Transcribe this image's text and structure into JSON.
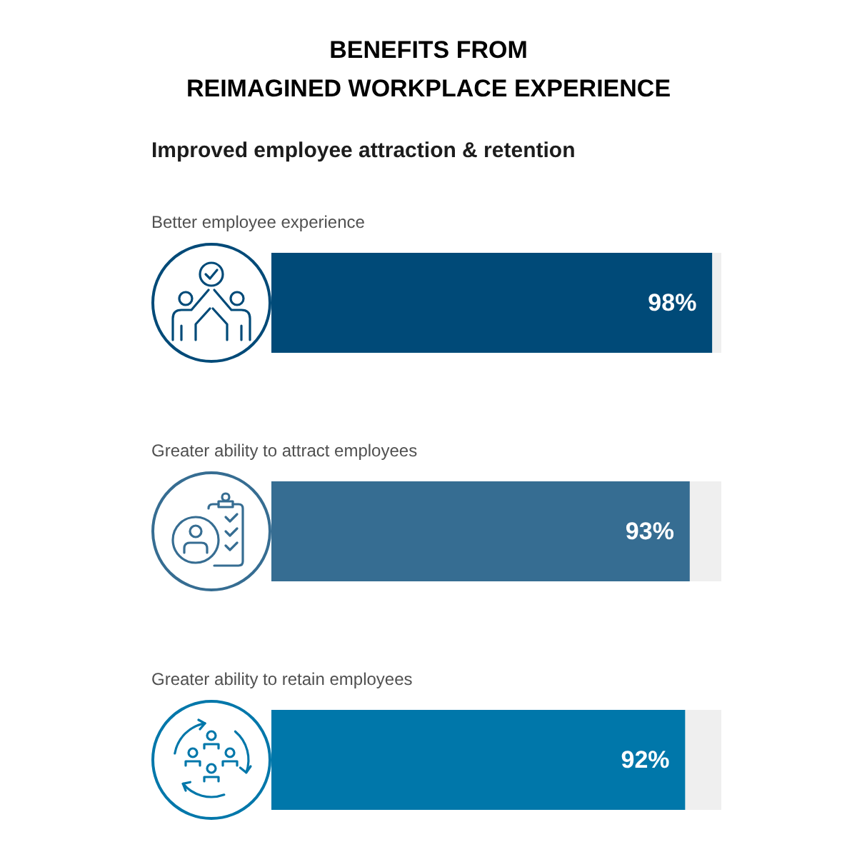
{
  "chart_data": {
    "type": "bar",
    "orientation": "horizontal",
    "stacked": true,
    "title": "BENEFITS FROM\nREIMAGINED WORKPLACE EXPERIENCE",
    "subtitle": "Improved employee attraction & retention",
    "categories": [
      "Better employee experience",
      "Greater ability to attract employees",
      "Greater ability to retain employees"
    ],
    "series": [
      {
        "colors": [
          "#004a78",
          "#366d92",
          "#0077aa"
        ],
        "values": [
          98,
          93,
          92
        ],
        "value_labels": [
          "98%",
          "93%",
          "92%"
        ]
      },
      {
        "color": "#efefef",
        "values": [
          2,
          7,
          8
        ]
      }
    ],
    "xlim": [
      0,
      100
    ],
    "tick_labels": "y"
  }
}
